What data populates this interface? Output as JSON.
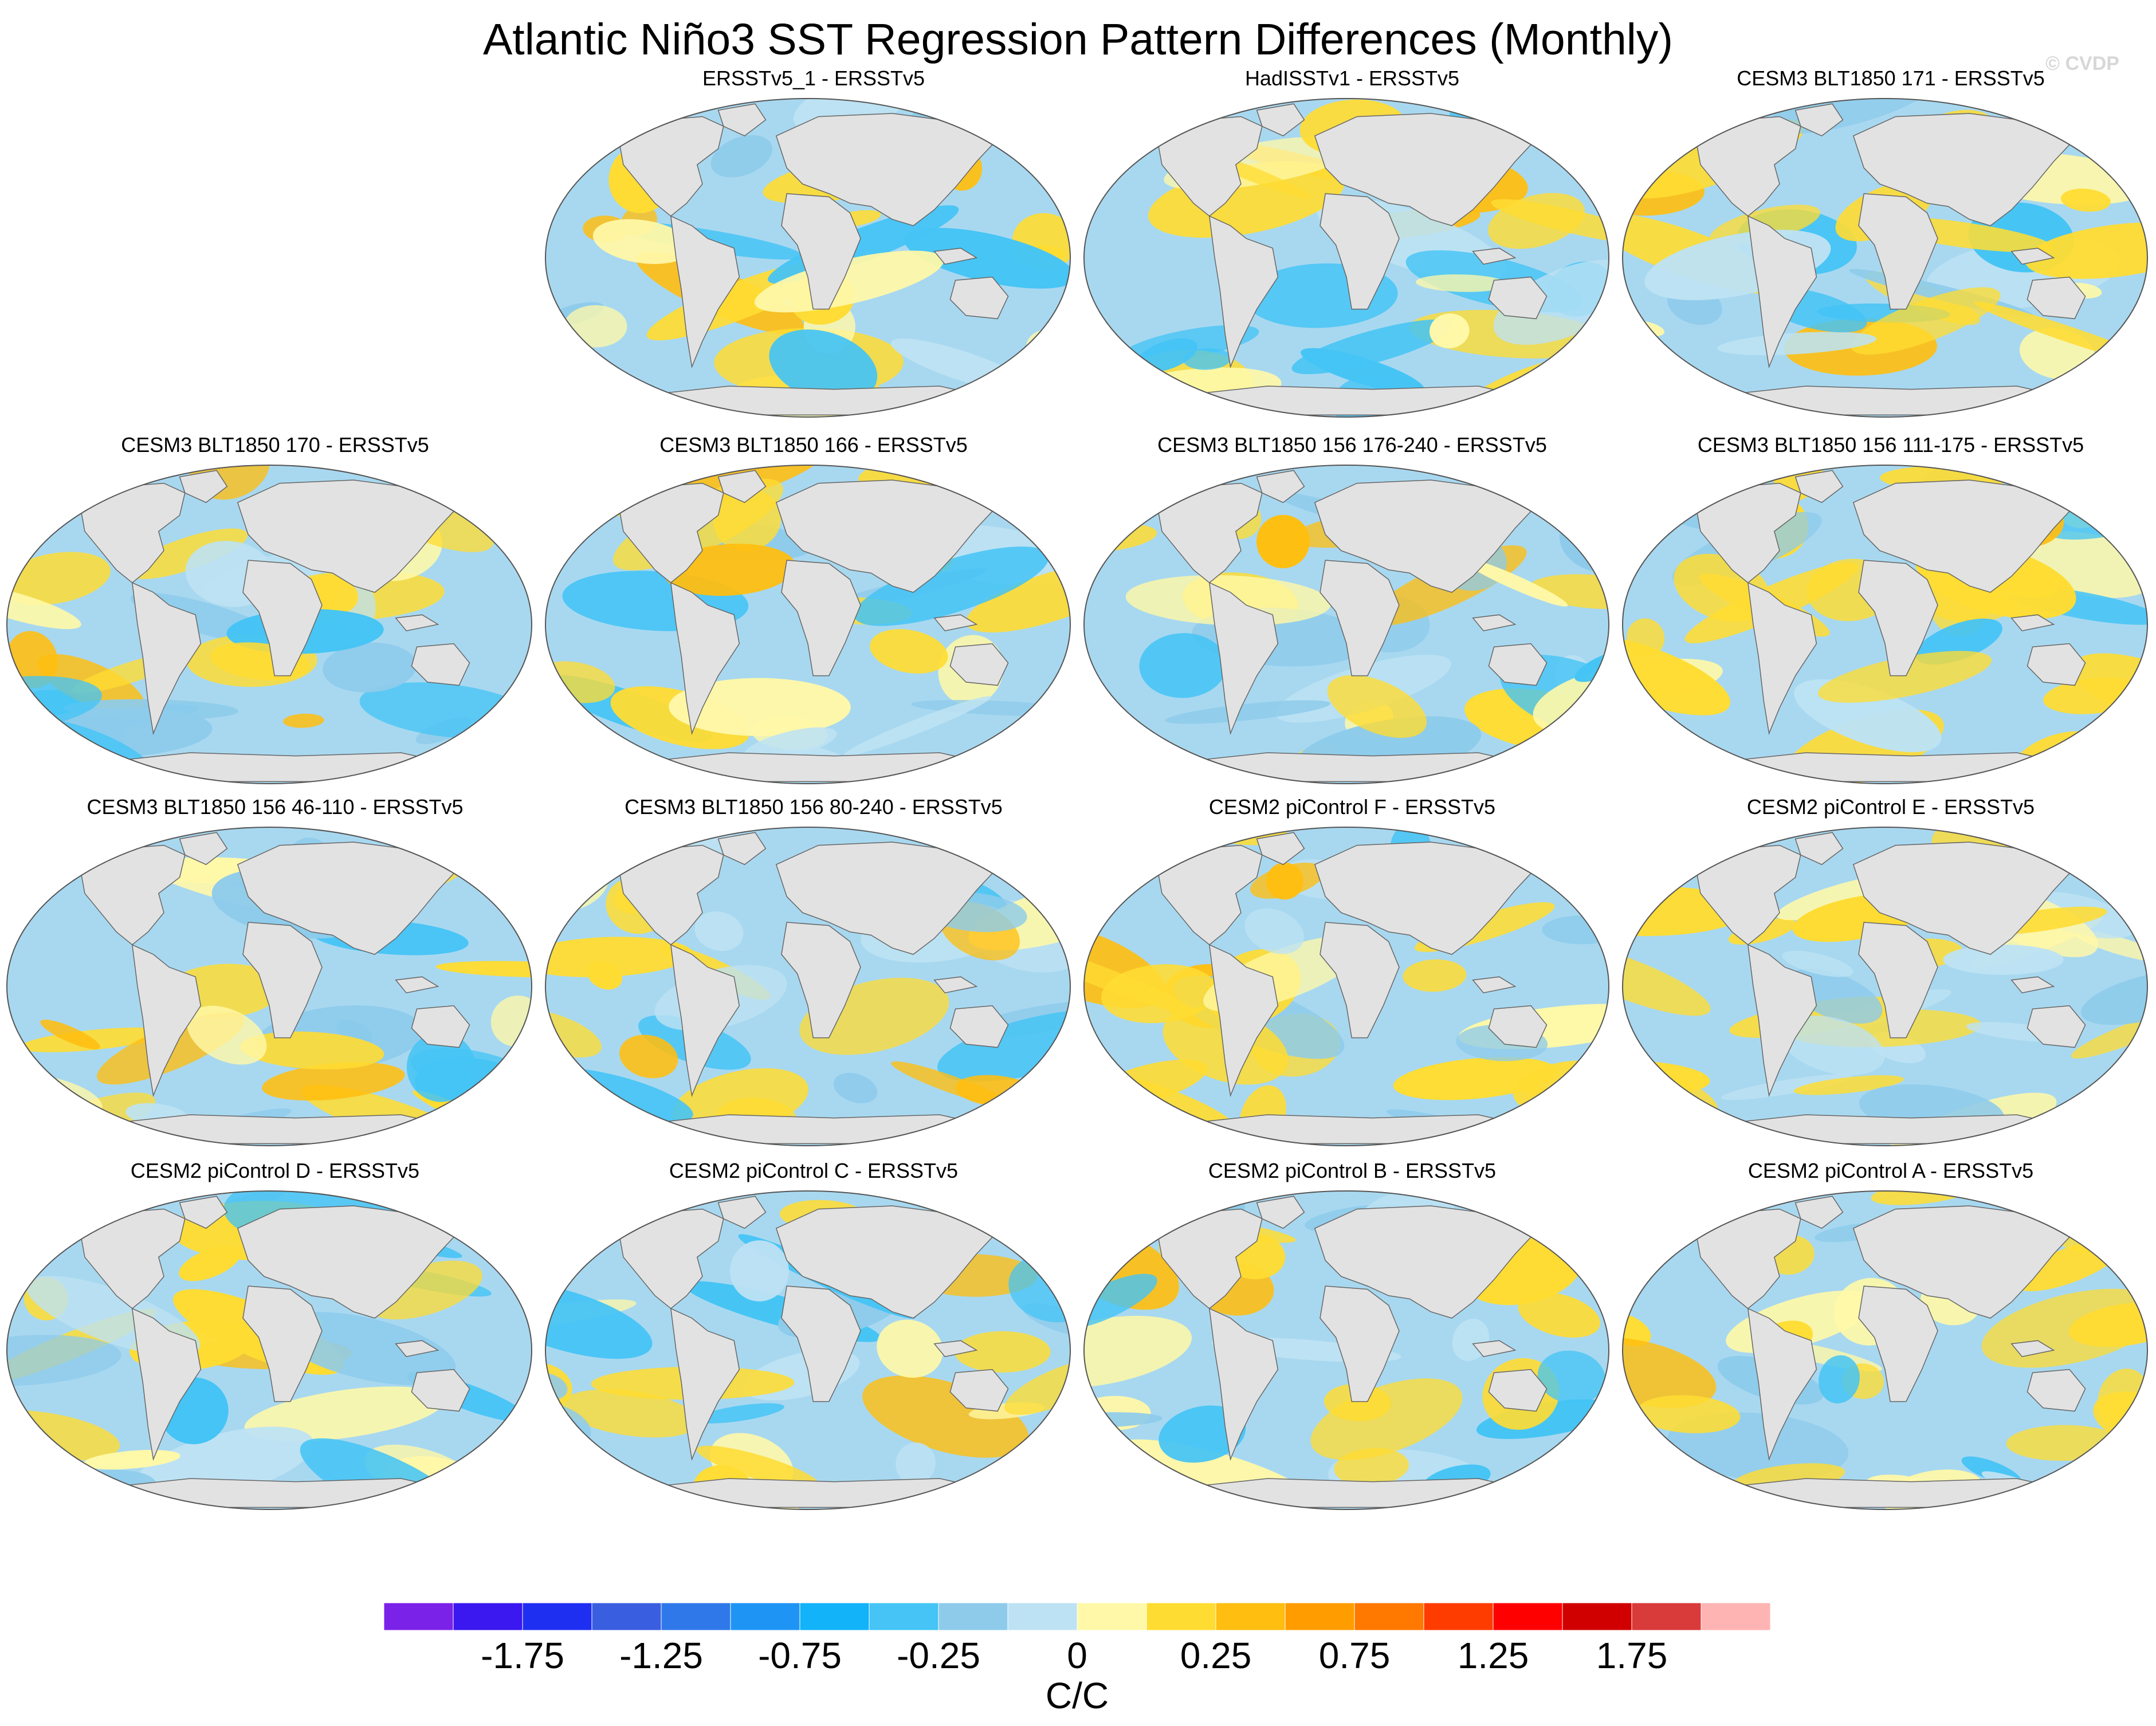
{
  "title": "Atlantic Niño3 SST Regression Pattern Differences (Monthly)",
  "watermark": "© CVDP",
  "panels": [
    {
      "title": "ERSSTv5_1 - ERSSTv5",
      "row": 0,
      "col": 1
    },
    {
      "title": "HadISSTv1 - ERSSTv5",
      "row": 0,
      "col": 2
    },
    {
      "title": "CESM3 BLT1850 171 - ERSSTv5",
      "row": 0,
      "col": 3
    },
    {
      "title": "CESM3 BLT1850 170 - ERSSTv5",
      "row": 1,
      "col": 0
    },
    {
      "title": "CESM3 BLT1850 166 - ERSSTv5",
      "row": 1,
      "col": 1
    },
    {
      "title": "CESM3 BLT1850 156 176-240 - ERSSTv5",
      "row": 1,
      "col": 2
    },
    {
      "title": "CESM3 BLT1850 156 111-175 - ERSSTv5",
      "row": 1,
      "col": 3
    },
    {
      "title": "CESM3 BLT1850 156 46-110 - ERSSTv5",
      "row": 2,
      "col": 0
    },
    {
      "title": "CESM3 BLT1850 156 80-240 - ERSSTv5",
      "row": 2,
      "col": 1
    },
    {
      "title": "CESM2 piControl F - ERSSTv5",
      "row": 2,
      "col": 2
    },
    {
      "title": "CESM2 piControl E - ERSSTv5",
      "row": 2,
      "col": 3
    },
    {
      "title": "CESM2 piControl D - ERSSTv5",
      "row": 3,
      "col": 0
    },
    {
      "title": "CESM2 piControl C - ERSSTv5",
      "row": 3,
      "col": 1
    },
    {
      "title": "CESM2 piControl B - ERSSTv5",
      "row": 3,
      "col": 2
    },
    {
      "title": "CESM2 piControl A - ERSSTv5",
      "row": 3,
      "col": 3
    }
  ],
  "colorbar": {
    "units": "C/C",
    "labels": [
      "-1.75",
      "-1.25",
      "-0.75",
      "-0.25",
      "0",
      "0.25",
      "0.75",
      "1.25",
      "1.75"
    ],
    "colors": [
      "#7b22e8",
      "#3b17f0",
      "#1f2ff2",
      "#3a5ee0",
      "#2f78ea",
      "#1e95f5",
      "#12b3f8",
      "#45c4f5",
      "#8ecbeb",
      "#bde2f3",
      "#fff8a8",
      "#ffdc32",
      "#ffbe10",
      "#ff9d00",
      "#ff7800",
      "#ff3c00",
      "#ff0000",
      "#d00000",
      "#d93a3a",
      "#ffb4b4"
    ],
    "ocean_positive": "#ffd23c",
    "ocean_negative": "#a8d8f0",
    "land": "#e2e2e2"
  }
}
